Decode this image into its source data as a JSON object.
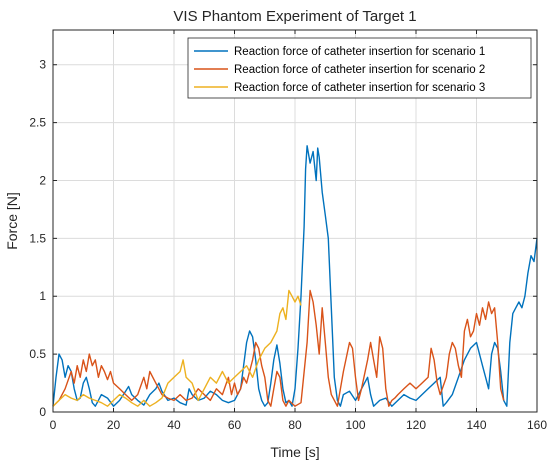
{
  "chart_data": {
    "type": "line",
    "title": "VIS Phantom Experiment of Target 1",
    "xlabel": "Time [s]",
    "ylabel": "Force [N]",
    "xlim": [
      0,
      160
    ],
    "ylim": [
      0,
      3.3
    ],
    "xticks": [
      0,
      20,
      40,
      60,
      80,
      100,
      120,
      140,
      160
    ],
    "yticks": [
      0,
      0.5,
      1,
      1.5,
      2,
      2.5,
      3
    ],
    "grid": true,
    "legend_position": "top-right",
    "series": [
      {
        "name": "Reaction force of catheter insertion for scenario 1",
        "color": "#0072BD",
        "points": [
          [
            0,
            0.05
          ],
          [
            1,
            0.3
          ],
          [
            2,
            0.5
          ],
          [
            3,
            0.45
          ],
          [
            4,
            0.3
          ],
          [
            5,
            0.4
          ],
          [
            6,
            0.35
          ],
          [
            7,
            0.2
          ],
          [
            8,
            0.1
          ],
          [
            9,
            0.12
          ],
          [
            10,
            0.25
          ],
          [
            11,
            0.3
          ],
          [
            12,
            0.2
          ],
          [
            13,
            0.08
          ],
          [
            14,
            0.05
          ],
          [
            15,
            0.1
          ],
          [
            16,
            0.15
          ],
          [
            18,
            0.12
          ],
          [
            20,
            0.05
          ],
          [
            22,
            0.1
          ],
          [
            24,
            0.18
          ],
          [
            25,
            0.22
          ],
          [
            26,
            0.15
          ],
          [
            28,
            0.1
          ],
          [
            30,
            0.06
          ],
          [
            32,
            0.15
          ],
          [
            34,
            0.2
          ],
          [
            35,
            0.25
          ],
          [
            36,
            0.18
          ],
          [
            38,
            0.1
          ],
          [
            40,
            0.12
          ],
          [
            42,
            0.08
          ],
          [
            44,
            0.06
          ],
          [
            45,
            0.2
          ],
          [
            46,
            0.15
          ],
          [
            48,
            0.1
          ],
          [
            50,
            0.12
          ],
          [
            52,
            0.18
          ],
          [
            54,
            0.15
          ],
          [
            56,
            0.1
          ],
          [
            58,
            0.08
          ],
          [
            60,
            0.1
          ],
          [
            62,
            0.2
          ],
          [
            63,
            0.4
          ],
          [
            64,
            0.6
          ],
          [
            65,
            0.7
          ],
          [
            66,
            0.65
          ],
          [
            67,
            0.45
          ],
          [
            68,
            0.2
          ],
          [
            69,
            0.1
          ],
          [
            70,
            0.05
          ],
          [
            71,
            0.08
          ],
          [
            72,
            0.25
          ],
          [
            73,
            0.45
          ],
          [
            74,
            0.58
          ],
          [
            75,
            0.42
          ],
          [
            76,
            0.2
          ],
          [
            77,
            0.08
          ],
          [
            78,
            0.1
          ],
          [
            79,
            0.05
          ],
          [
            80,
            0.2
          ],
          [
            81,
            0.55
          ],
          [
            82,
            1.0
          ],
          [
            83,
            1.6
          ],
          [
            83.5,
            2.1
          ],
          [
            84,
            2.3
          ],
          [
            85,
            2.15
          ],
          [
            86,
            2.25
          ],
          [
            87,
            2.0
          ],
          [
            87.5,
            2.28
          ],
          [
            88,
            2.2
          ],
          [
            89,
            1.9
          ],
          [
            90,
            1.7
          ],
          [
            91,
            1.5
          ],
          [
            92,
            0.9
          ],
          [
            93,
            0.3
          ],
          [
            94,
            0.1
          ],
          [
            95,
            0.05
          ],
          [
            96,
            0.15
          ],
          [
            98,
            0.18
          ],
          [
            100,
            0.1
          ],
          [
            102,
            0.2
          ],
          [
            104,
            0.3
          ],
          [
            105,
            0.15
          ],
          [
            106,
            0.05
          ],
          [
            108,
            0.1
          ],
          [
            110,
            0.12
          ],
          [
            112,
            0.05
          ],
          [
            114,
            0.1
          ],
          [
            116,
            0.15
          ],
          [
            118,
            0.12
          ],
          [
            120,
            0.1
          ],
          [
            122,
            0.15
          ],
          [
            124,
            0.2
          ],
          [
            126,
            0.25
          ],
          [
            128,
            0.3
          ],
          [
            129,
            0.05
          ],
          [
            130,
            0.08
          ],
          [
            132,
            0.15
          ],
          [
            134,
            0.3
          ],
          [
            136,
            0.45
          ],
          [
            138,
            0.55
          ],
          [
            140,
            0.6
          ],
          [
            141,
            0.5
          ],
          [
            142,
            0.4
          ],
          [
            143,
            0.3
          ],
          [
            144,
            0.2
          ],
          [
            145,
            0.5
          ],
          [
            146,
            0.6
          ],
          [
            147,
            0.55
          ],
          [
            148,
            0.35
          ],
          [
            149,
            0.1
          ],
          [
            150,
            0.05
          ],
          [
            151,
            0.6
          ],
          [
            152,
            0.85
          ],
          [
            153,
            0.9
          ],
          [
            154,
            0.95
          ],
          [
            155,
            0.9
          ],
          [
            156,
            1.0
          ],
          [
            157,
            1.2
          ],
          [
            158,
            1.35
          ],
          [
            159,
            1.3
          ],
          [
            160,
            1.5
          ]
        ]
      },
      {
        "name": "Reaction force of catheter insertion for scenario 2",
        "color": "#D95319",
        "points": [
          [
            0,
            0.05
          ],
          [
            2,
            0.1
          ],
          [
            4,
            0.2
          ],
          [
            6,
            0.35
          ],
          [
            7,
            0.25
          ],
          [
            8,
            0.4
          ],
          [
            9,
            0.3
          ],
          [
            10,
            0.45
          ],
          [
            11,
            0.35
          ],
          [
            12,
            0.5
          ],
          [
            13,
            0.4
          ],
          [
            14,
            0.45
          ],
          [
            15,
            0.3
          ],
          [
            16,
            0.4
          ],
          [
            17,
            0.35
          ],
          [
            18,
            0.28
          ],
          [
            19,
            0.35
          ],
          [
            20,
            0.25
          ],
          [
            22,
            0.2
          ],
          [
            24,
            0.15
          ],
          [
            26,
            0.1
          ],
          [
            28,
            0.15
          ],
          [
            30,
            0.3
          ],
          [
            31,
            0.2
          ],
          [
            32,
            0.35
          ],
          [
            34,
            0.25
          ],
          [
            36,
            0.15
          ],
          [
            38,
            0.12
          ],
          [
            40,
            0.1
          ],
          [
            42,
            0.15
          ],
          [
            44,
            0.1
          ],
          [
            46,
            0.12
          ],
          [
            48,
            0.2
          ],
          [
            50,
            0.15
          ],
          [
            52,
            0.1
          ],
          [
            54,
            0.2
          ],
          [
            56,
            0.15
          ],
          [
            58,
            0.3
          ],
          [
            59,
            0.15
          ],
          [
            60,
            0.25
          ],
          [
            61,
            0.15
          ],
          [
            62,
            0.2
          ],
          [
            63,
            0.3
          ],
          [
            64,
            0.25
          ],
          [
            65,
            0.35
          ],
          [
            66,
            0.45
          ],
          [
            67,
            0.6
          ],
          [
            68,
            0.55
          ],
          [
            69,
            0.4
          ],
          [
            70,
            0.3
          ],
          [
            71,
            0.1
          ],
          [
            72,
            0.05
          ],
          [
            73,
            0.2
          ],
          [
            74,
            0.35
          ],
          [
            75,
            0.3
          ],
          [
            76,
            0.1
          ],
          [
            77,
            0.05
          ],
          [
            78,
            0.1
          ],
          [
            80,
            0.05
          ],
          [
            82,
            0.08
          ],
          [
            84,
            0.6
          ],
          [
            85,
            1.05
          ],
          [
            86,
            0.95
          ],
          [
            87,
            0.75
          ],
          [
            88,
            0.5
          ],
          [
            89,
            0.9
          ],
          [
            90,
            0.6
          ],
          [
            91,
            0.3
          ],
          [
            92,
            0.15
          ],
          [
            94,
            0.05
          ],
          [
            96,
            0.35
          ],
          [
            98,
            0.6
          ],
          [
            99,
            0.55
          ],
          [
            100,
            0.3
          ],
          [
            101,
            0.1
          ],
          [
            102,
            0.2
          ],
          [
            104,
            0.45
          ],
          [
            105,
            0.6
          ],
          [
            106,
            0.45
          ],
          [
            107,
            0.3
          ],
          [
            108,
            0.65
          ],
          [
            109,
            0.55
          ],
          [
            110,
            0.2
          ],
          [
            111,
            0.05
          ],
          [
            112,
            0.1
          ],
          [
            113,
            0.12
          ],
          [
            114,
            0.15
          ],
          [
            116,
            0.2
          ],
          [
            118,
            0.25
          ],
          [
            120,
            0.2
          ],
          [
            122,
            0.25
          ],
          [
            124,
            0.3
          ],
          [
            125,
            0.55
          ],
          [
            126,
            0.45
          ],
          [
            127,
            0.25
          ],
          [
            128,
            0.15
          ],
          [
            130,
            0.3
          ],
          [
            131,
            0.5
          ],
          [
            132,
            0.6
          ],
          [
            133,
            0.55
          ],
          [
            134,
            0.4
          ],
          [
            135,
            0.3
          ],
          [
            136,
            0.7
          ],
          [
            137,
            0.8
          ],
          [
            138,
            0.65
          ],
          [
            139,
            0.7
          ],
          [
            140,
            0.85
          ],
          [
            141,
            0.75
          ],
          [
            142,
            0.9
          ],
          [
            143,
            0.8
          ],
          [
            144,
            0.95
          ],
          [
            145,
            0.85
          ],
          [
            146,
            0.9
          ],
          [
            147,
            0.6
          ],
          [
            148,
            0.2
          ],
          [
            149,
            0.1
          ]
        ]
      },
      {
        "name": "Reaction force of catheter insertion for scenario 3",
        "color": "#EDB120",
        "points": [
          [
            0,
            0.05
          ],
          [
            2,
            0.1
          ],
          [
            4,
            0.15
          ],
          [
            6,
            0.12
          ],
          [
            8,
            0.1
          ],
          [
            10,
            0.15
          ],
          [
            12,
            0.12
          ],
          [
            14,
            0.1
          ],
          [
            16,
            0.08
          ],
          [
            18,
            0.05
          ],
          [
            20,
            0.1
          ],
          [
            22,
            0.15
          ],
          [
            24,
            0.12
          ],
          [
            26,
            0.08
          ],
          [
            28,
            0.05
          ],
          [
            30,
            0.1
          ],
          [
            32,
            0.05
          ],
          [
            34,
            0.08
          ],
          [
            36,
            0.12
          ],
          [
            38,
            0.25
          ],
          [
            40,
            0.3
          ],
          [
            42,
            0.35
          ],
          [
            43,
            0.45
          ],
          [
            44,
            0.3
          ],
          [
            46,
            0.25
          ],
          [
            48,
            0.1
          ],
          [
            50,
            0.2
          ],
          [
            52,
            0.3
          ],
          [
            54,
            0.25
          ],
          [
            56,
            0.35
          ],
          [
            58,
            0.25
          ],
          [
            60,
            0.3
          ],
          [
            62,
            0.35
          ],
          [
            64,
            0.4
          ],
          [
            66,
            0.3
          ],
          [
            68,
            0.45
          ],
          [
            70,
            0.55
          ],
          [
            72,
            0.6
          ],
          [
            74,
            0.7
          ],
          [
            75,
            0.85
          ],
          [
            76,
            0.9
          ],
          [
            77,
            0.8
          ],
          [
            78,
            1.05
          ],
          [
            79,
            1.0
          ],
          [
            80,
            0.95
          ],
          [
            81,
            1.0
          ],
          [
            82,
            0.92
          ]
        ]
      }
    ]
  }
}
